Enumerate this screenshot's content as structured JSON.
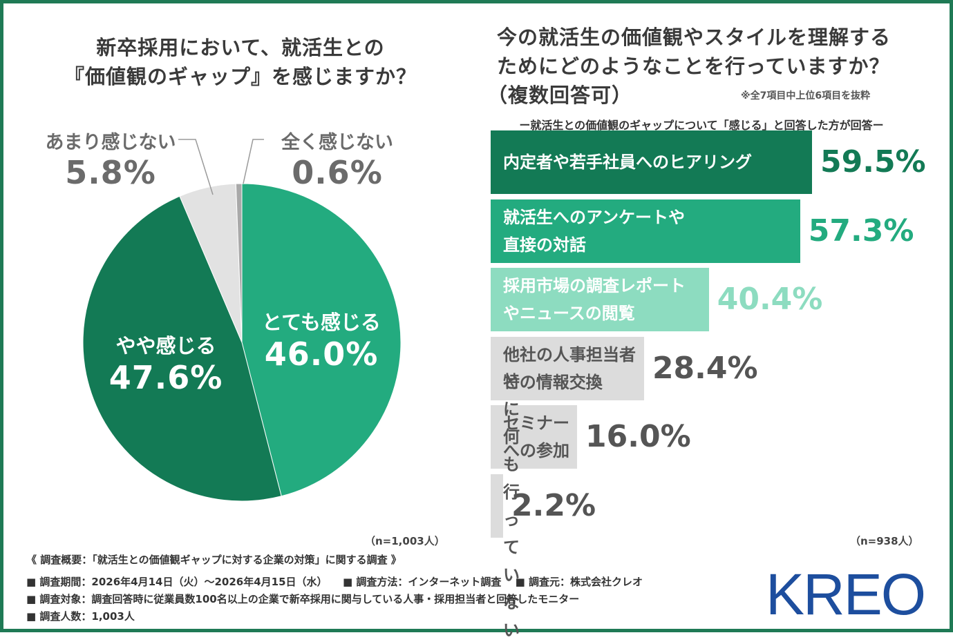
{
  "pie": {
    "title_line1": "新卒採用において、就活生との",
    "title_line2": "『価値観のギャップ』を感じますか？",
    "n_label": "（n=1,003人）",
    "colors": {
      "strong": "#23ab7f",
      "some": "#137a55",
      "not_much": "#e2e2e2",
      "none": "#a9a9a9"
    }
  },
  "bar": {
    "title_line1": "今の就活生の価値観やスタイルを理解する",
    "title_line2": "ためにどのようなことを行っていますか？",
    "title_line3": "（複数回答可）",
    "note": "※全7項目中上位6項目を抜粋",
    "subtitle": "ー就活生との価値観のギャップについて「感じる」と回答した方が回答ー",
    "n_label": "（n=938人）"
  },
  "footer": {
    "line1": "《 調査概要：「就活生との価値観ギャップに対する企業の対策」に関する調査 》",
    "line2": "■ 調査期間：2026年4月14日（火）～2026年4月15日（水）　　■ 調査方法：インターネット調査　 ■ 調査元：株式会社クレオ",
    "line3": "■ 調査対象：調査回答時に従業員数100名以上の企業で新卒採用に関与している人事・採用担当者と回答したモニター",
    "line4": "■ 調査人数：1,003人"
  },
  "logo": {
    "text": "KREO",
    "color": "#1d4e9e"
  },
  "chart_data": [
    {
      "type": "pie",
      "title": "新卒採用において、就活生との『価値観のギャップ』を感じますか？",
      "slices": [
        {
          "label": "とても感じる",
          "value": 46.0,
          "display": "46.0%",
          "color": "#23ab7f"
        },
        {
          "label": "やや感じる",
          "value": 47.6,
          "display": "47.6%",
          "color": "#137a55"
        },
        {
          "label": "あまり感じない",
          "value": 5.8,
          "display": "5.8%",
          "color": "#e2e2e2"
        },
        {
          "label": "全く感じない",
          "value": 0.6,
          "display": "0.6%",
          "color": "#a9a9a9"
        }
      ]
    },
    {
      "type": "bar",
      "orientation": "horizontal",
      "title": "今の就活生の価値観やスタイルを理解するためにどのようなことを行っていますか？（複数回答可）",
      "categories": [
        "内定者や若手社員へのヒアリング",
        "就活生へのアンケートや\n直接の対話",
        "採用市場の調査レポート\nやニュースの閲覧",
        "他社の人事担当者\nとの情報交換",
        "セミナー\nへの参加",
        "特に何も\n行っていない"
      ],
      "values": [
        59.5,
        57.3,
        40.4,
        28.4,
        16.0,
        2.2
      ],
      "display": [
        "59.5%",
        "57.3%",
        "40.4%",
        "28.4%",
        "16.0%",
        "2.2%"
      ],
      "bar_colors": [
        "#137a55",
        "#23ab7f",
        "#8ddcc0",
        "#dcdcdc",
        "#dcdcdc",
        "#dcdcdc"
      ],
      "label_colors": [
        "#ffffff",
        "#ffffff",
        "#ffffff",
        "#555555",
        "#555555",
        "#555555"
      ],
      "value_colors": [
        "#137a55",
        "#23ab7f",
        "#8ddcc0",
        "#555555",
        "#555555",
        "#555555"
      ]
    }
  ]
}
